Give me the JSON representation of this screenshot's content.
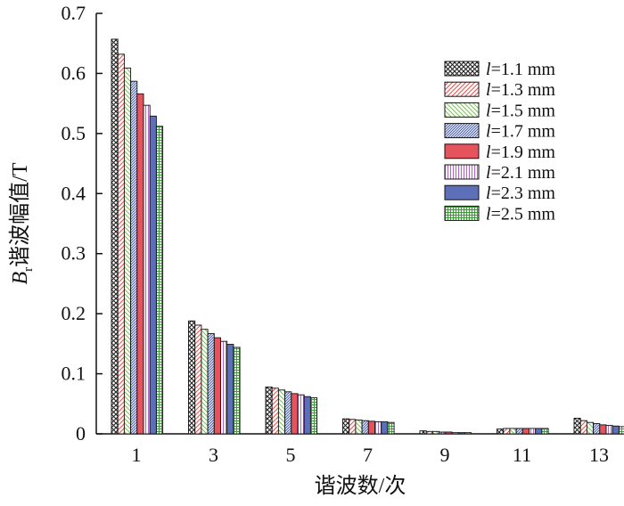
{
  "chart_data": {
    "type": "bar",
    "xlabel": "谐波数/次",
    "ylabel": "B",
    "ylabel_sub": "r",
    "ylabel_suffix": "谐波幅值/T",
    "ylim": [
      0,
      0.7
    ],
    "yticks": [
      "0",
      "0.1",
      "0.2",
      "0.3",
      "0.4",
      "0.5",
      "0.6",
      "0.7"
    ],
    "categories": [
      "1",
      "3",
      "5",
      "7",
      "9",
      "11",
      "13"
    ],
    "legend_position": "top-right",
    "series": [
      {
        "name_prefix": "l",
        "name": "=1.1 mm",
        "pattern": "crosshatch",
        "color": "#222222",
        "values": [
          0.657,
          0.188,
          0.078,
          0.025,
          0.005,
          0.008,
          0.026
        ]
      },
      {
        "name_prefix": "l",
        "name": "=1.3 mm",
        "pattern": "diag-right",
        "color": "#e8534e",
        "values": [
          0.632,
          0.181,
          0.076,
          0.024,
          0.004,
          0.009,
          0.022
        ]
      },
      {
        "name_prefix": "l",
        "name": "=1.5 mm",
        "pattern": "diag-left",
        "color": "#7fc35b",
        "values": [
          0.609,
          0.174,
          0.073,
          0.023,
          0.004,
          0.009,
          0.019
        ]
      },
      {
        "name_prefix": "l",
        "name": "=1.7 mm",
        "pattern": "diag-dense",
        "color": "#4b5fa8",
        "values": [
          0.587,
          0.167,
          0.07,
          0.022,
          0.003,
          0.009,
          0.017
        ]
      },
      {
        "name_prefix": "l",
        "name": "=1.9 mm",
        "pattern": "solid",
        "color": "#e5545d",
        "values": [
          0.566,
          0.16,
          0.067,
          0.021,
          0.003,
          0.009,
          0.015
        ]
      },
      {
        "name_prefix": "l",
        "name": "=2.1 mm",
        "pattern": "vertical",
        "color": "#b268c4",
        "values": [
          0.547,
          0.154,
          0.065,
          0.02,
          0.002,
          0.009,
          0.014
        ]
      },
      {
        "name_prefix": "l",
        "name": "=2.3 mm",
        "pattern": "solid",
        "color": "#5d6fb8",
        "values": [
          0.529,
          0.149,
          0.062,
          0.02,
          0.002,
          0.009,
          0.013
        ]
      },
      {
        "name_prefix": "l",
        "name": "=2.5 mm",
        "pattern": "grid",
        "color": "#3f9a3a",
        "values": [
          0.512,
          0.144,
          0.06,
          0.019,
          0.002,
          0.009,
          0.012
        ]
      }
    ]
  }
}
